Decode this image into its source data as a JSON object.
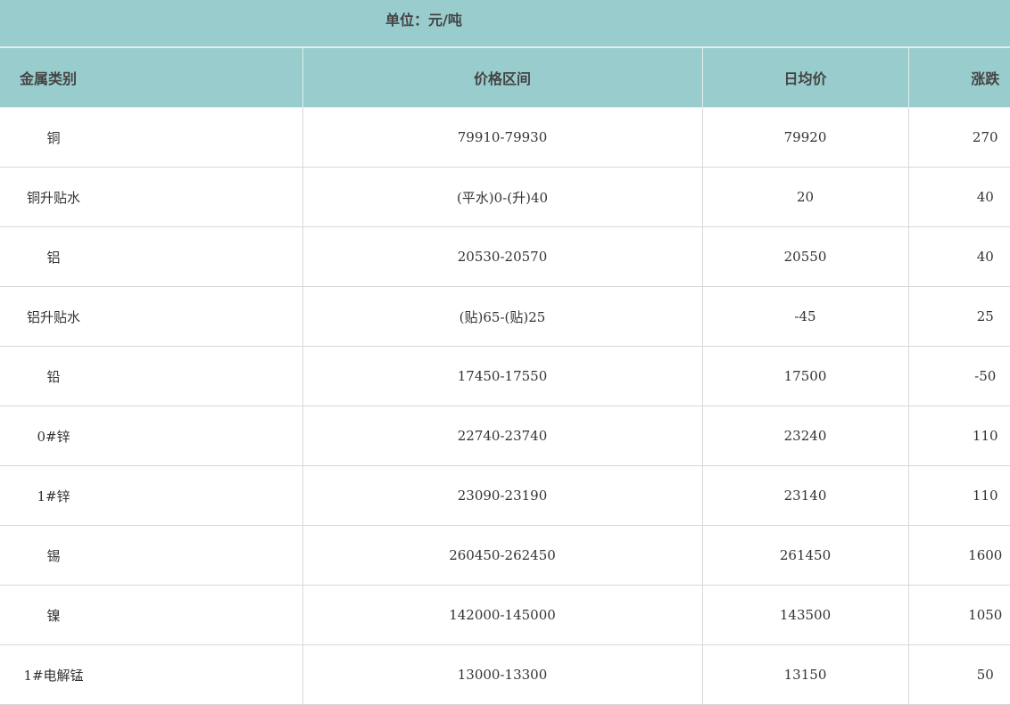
{
  "unit_label": "单位：元/吨",
  "headers": [
    "金属类别",
    "价格区间",
    "日均价",
    "涨跌"
  ],
  "rows": [
    [
      "铜",
      "79910-79930",
      "79920",
      "270"
    ],
    [
      "铜升贴水",
      "(平水)0-(升)40",
      "20",
      "40"
    ],
    [
      "铝",
      "20530-20570",
      "20550",
      "40"
    ],
    [
      "铝升贴水",
      "(贴)65-(贴)25",
      "-45",
      "25"
    ],
    [
      "铅",
      "17450-17550",
      "17500",
      "-50"
    ],
    [
      "0#锌",
      "22740-23740",
      "23240",
      "110"
    ],
    [
      "1#锌",
      "23090-23190",
      "23140",
      "110"
    ],
    [
      "锡",
      "260450-262450",
      "261450",
      "1600"
    ],
    [
      "镍",
      "142000-145000",
      "143500",
      "1050"
    ],
    [
      "1#电解锰",
      "13000-13300",
      "13150",
      "50"
    ]
  ],
  "colors": {
    "header_bg": "#99cccc",
    "grid": "#d8d8d8"
  }
}
